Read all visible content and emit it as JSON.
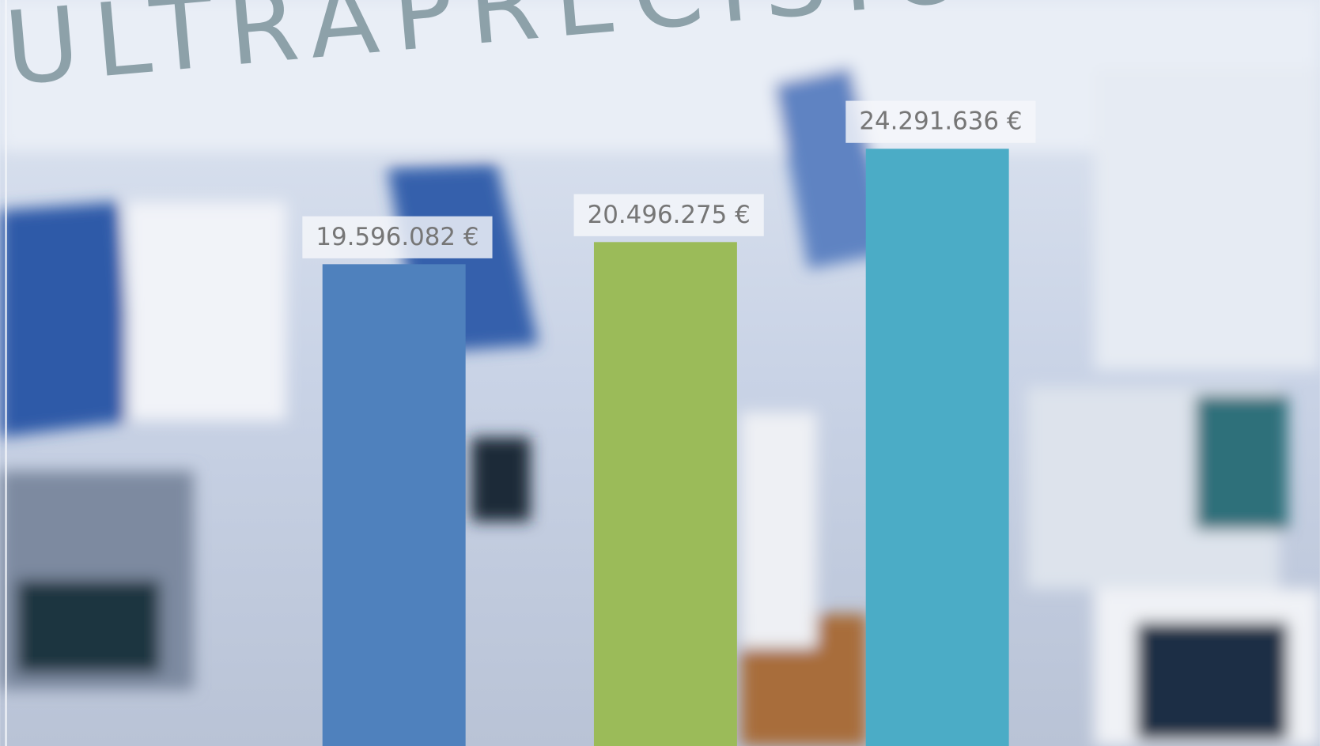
{
  "chart_data": {
    "type": "bar",
    "background_text": "ULTRAPRECISION CENTER",
    "categories": [
      null,
      null,
      null
    ],
    "values": [
      19596082,
      20496275,
      24291636
    ],
    "value_labels": [
      "19.596.082 €",
      "20.496.275 €",
      "24.291.636 €"
    ],
    "colors": [
      "#4f81bd",
      "#9bbb59",
      "#4bacc6"
    ],
    "ylim": [
      0,
      30000000
    ]
  }
}
